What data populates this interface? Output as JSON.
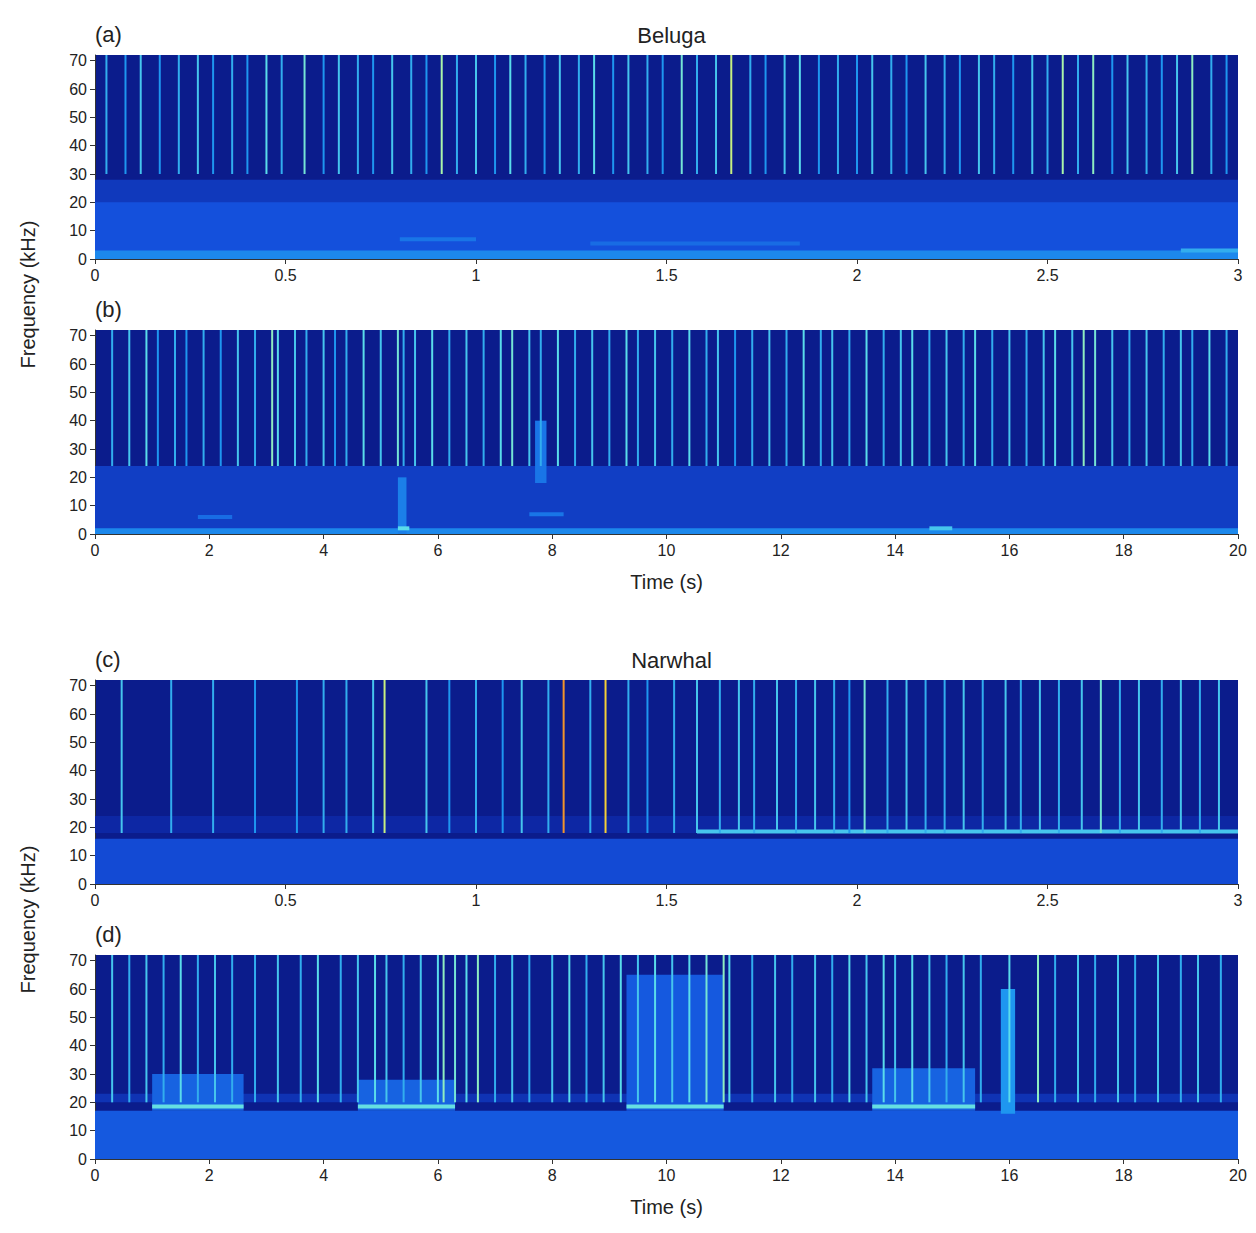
{
  "chart_data": [
    {
      "type": "spectrogram",
      "panel": "(a)",
      "title": "Beluga",
      "ylabel": "Frequency (kHz)",
      "xlim": [
        0,
        3
      ],
      "xticks": [
        0,
        0.5,
        1,
        1.5,
        2,
        2.5,
        3
      ],
      "ylim": [
        0,
        72
      ],
      "yticks": [
        0,
        10,
        20,
        30,
        40,
        50,
        60,
        70
      ],
      "grid": false,
      "noise_bands": [
        {
          "fmin": 0,
          "fmax": 28,
          "intensity": 0.22
        },
        {
          "fmin": 0,
          "fmax": 20,
          "intensity": 0.3
        },
        {
          "fmin": 0,
          "fmax": 3,
          "intensity": 0.42
        }
      ],
      "click_band": [
        30,
        72
      ],
      "clicks": [
        [
          0.03,
          0.5
        ],
        [
          0.08,
          0.45
        ],
        [
          0.12,
          0.55
        ],
        [
          0.17,
          0.45
        ],
        [
          0.22,
          0.5
        ],
        [
          0.27,
          0.55
        ],
        [
          0.31,
          0.45
        ],
        [
          0.36,
          0.5
        ],
        [
          0.4,
          0.45
        ],
        [
          0.45,
          0.6
        ],
        [
          0.49,
          0.5
        ],
        [
          0.55,
          0.65
        ],
        [
          0.6,
          0.45
        ],
        [
          0.64,
          0.55
        ],
        [
          0.69,
          0.5
        ],
        [
          0.73,
          0.45
        ],
        [
          0.78,
          0.55
        ],
        [
          0.83,
          0.5
        ],
        [
          0.87,
          0.45
        ],
        [
          0.91,
          0.75
        ],
        [
          0.95,
          0.5
        ],
        [
          1.0,
          0.55
        ],
        [
          1.05,
          0.45
        ],
        [
          1.09,
          0.6
        ],
        [
          1.13,
          0.5
        ],
        [
          1.18,
          0.45
        ],
        [
          1.22,
          0.55
        ],
        [
          1.27,
          0.5
        ],
        [
          1.31,
          0.6
        ],
        [
          1.36,
          0.45
        ],
        [
          1.4,
          0.55
        ],
        [
          1.45,
          0.5
        ],
        [
          1.49,
          0.45
        ],
        [
          1.54,
          0.65
        ],
        [
          1.58,
          0.5
        ],
        [
          1.63,
          0.55
        ],
        [
          1.67,
          0.8
        ],
        [
          1.72,
          0.5
        ],
        [
          1.76,
          0.45
        ],
        [
          1.81,
          0.55
        ],
        [
          1.85,
          0.6
        ],
        [
          1.9,
          0.45
        ],
        [
          1.95,
          0.5
        ],
        [
          2.0,
          0.45
        ],
        [
          2.04,
          0.55
        ],
        [
          2.09,
          0.5
        ],
        [
          2.13,
          0.45
        ],
        [
          2.18,
          0.55
        ],
        [
          2.23,
          0.5
        ],
        [
          2.27,
          0.45
        ],
        [
          2.32,
          0.55
        ],
        [
          2.36,
          0.5
        ],
        [
          2.41,
          0.45
        ],
        [
          2.46,
          0.55
        ],
        [
          2.5,
          0.5
        ],
        [
          2.54,
          0.75
        ],
        [
          2.58,
          0.5
        ],
        [
          2.62,
          0.7
        ],
        [
          2.67,
          0.45
        ],
        [
          2.71,
          0.55
        ],
        [
          2.76,
          0.5
        ],
        [
          2.8,
          0.45
        ],
        [
          2.84,
          0.55
        ],
        [
          2.88,
          0.7
        ],
        [
          2.93,
          0.5
        ],
        [
          2.97,
          0.45
        ]
      ],
      "tonals": [
        {
          "t0": 0.8,
          "t1": 1.0,
          "f": 7,
          "intensity": 0.38
        },
        {
          "t0": 1.3,
          "t1": 1.85,
          "f": 5.5,
          "intensity": 0.36
        },
        {
          "t0": 2.85,
          "t1": 3.0,
          "f": 3,
          "intensity": 0.5
        }
      ]
    },
    {
      "type": "spectrogram",
      "panel": "(b)",
      "xlabel": "Time (s)",
      "xlim": [
        0,
        20
      ],
      "xticks": [
        0,
        2,
        4,
        6,
        8,
        10,
        12,
        14,
        16,
        18,
        20
      ],
      "ylim": [
        0,
        72
      ],
      "yticks": [
        0,
        10,
        20,
        30,
        40,
        50,
        60,
        70
      ],
      "grid": false,
      "noise_bands": [
        {
          "fmin": 0,
          "fmax": 24,
          "intensity": 0.24
        },
        {
          "fmin": 0,
          "fmax": 2,
          "intensity": 0.42
        }
      ],
      "click_band": [
        24,
        72
      ],
      "clicks": [
        [
          0.3,
          0.5
        ],
        [
          0.6,
          0.55
        ],
        [
          0.9,
          0.6
        ],
        [
          1.1,
          0.45
        ],
        [
          1.4,
          0.5
        ],
        [
          1.6,
          0.45
        ],
        [
          1.9,
          0.5
        ],
        [
          2.2,
          0.45
        ],
        [
          2.5,
          0.55
        ],
        [
          2.8,
          0.5
        ],
        [
          3.1,
          0.7
        ],
        [
          3.2,
          0.6
        ],
        [
          3.5,
          0.55
        ],
        [
          3.7,
          0.5
        ],
        [
          4.0,
          0.55
        ],
        [
          4.2,
          0.45
        ],
        [
          4.4,
          0.5
        ],
        [
          4.7,
          0.6
        ],
        [
          5.0,
          0.55
        ],
        [
          5.3,
          0.65
        ],
        [
          5.4,
          0.5
        ],
        [
          5.6,
          0.55
        ],
        [
          5.9,
          0.6
        ],
        [
          6.2,
          0.5
        ],
        [
          6.5,
          0.55
        ],
        [
          6.8,
          0.5
        ],
        [
          7.1,
          0.6
        ],
        [
          7.3,
          0.65
        ],
        [
          7.6,
          0.55
        ],
        [
          7.8,
          0.5
        ],
        [
          8.1,
          0.6
        ],
        [
          8.4,
          0.5
        ],
        [
          8.7,
          0.55
        ],
        [
          9.0,
          0.5
        ],
        [
          9.3,
          0.6
        ],
        [
          9.5,
          0.5
        ],
        [
          9.8,
          0.55
        ],
        [
          10.1,
          0.5
        ],
        [
          10.4,
          0.6
        ],
        [
          10.7,
          0.5
        ],
        [
          10.9,
          0.55
        ],
        [
          11.2,
          0.45
        ],
        [
          11.5,
          0.5
        ],
        [
          11.8,
          0.55
        ],
        [
          12.1,
          0.5
        ],
        [
          12.4,
          0.6
        ],
        [
          12.7,
          0.5
        ],
        [
          12.9,
          0.55
        ],
        [
          13.2,
          0.5
        ],
        [
          13.5,
          0.6
        ],
        [
          13.8,
          0.5
        ],
        [
          14.1,
          0.55
        ],
        [
          14.3,
          0.6
        ],
        [
          14.6,
          0.5
        ],
        [
          14.9,
          0.55
        ],
        [
          15.2,
          0.5
        ],
        [
          15.4,
          0.6
        ],
        [
          15.7,
          0.5
        ],
        [
          16.0,
          0.55
        ],
        [
          16.3,
          0.5
        ],
        [
          16.6,
          0.55
        ],
        [
          16.8,
          0.6
        ],
        [
          17.1,
          0.55
        ],
        [
          17.3,
          0.7
        ],
        [
          17.5,
          0.65
        ],
        [
          17.8,
          0.55
        ],
        [
          18.1,
          0.5
        ],
        [
          18.4,
          0.55
        ],
        [
          18.7,
          0.5
        ],
        [
          19.0,
          0.55
        ],
        [
          19.2,
          0.5
        ],
        [
          19.5,
          0.6
        ],
        [
          19.8,
          0.5
        ]
      ],
      "tonals": [
        {
          "t0": 1.8,
          "t1": 2.4,
          "f": 6,
          "intensity": 0.36
        },
        {
          "t0": 7.6,
          "t1": 8.2,
          "f": 7,
          "intensity": 0.38
        },
        {
          "t0": 5.3,
          "t1": 5.5,
          "f": 2,
          "intensity": 0.6
        },
        {
          "t0": 14.6,
          "t1": 15.0,
          "f": 2,
          "intensity": 0.55
        }
      ],
      "bursts": [
        {
          "t0": 5.3,
          "t1": 5.45,
          "fmin": 0,
          "fmax": 20,
          "intensity": 0.4
        },
        {
          "t0": 7.7,
          "t1": 7.9,
          "fmin": 18,
          "fmax": 40,
          "intensity": 0.38
        }
      ]
    },
    {
      "type": "spectrogram",
      "panel": "(c)",
      "title": "Narwhal",
      "ylabel": "Frequency (kHz)",
      "xlim": [
        0,
        3
      ],
      "xticks": [
        0,
        0.5,
        1,
        1.5,
        2,
        2.5,
        3
      ],
      "ylim": [
        0,
        72
      ],
      "yticks": [
        0,
        10,
        20,
        30,
        40,
        50,
        60,
        70
      ],
      "grid": false,
      "noise_bands": [
        {
          "fmin": 0,
          "fmax": 16,
          "intensity": 0.28
        },
        {
          "fmin": 18,
          "fmax": 24,
          "intensity": 0.16
        }
      ],
      "click_band": [
        18,
        72
      ],
      "clicks": [
        [
          0.07,
          0.55
        ],
        [
          0.2,
          0.5
        ],
        [
          0.31,
          0.5
        ],
        [
          0.42,
          0.45
        ],
        [
          0.53,
          0.45
        ],
        [
          0.6,
          0.5
        ],
        [
          0.66,
          0.5
        ],
        [
          0.73,
          0.55
        ],
        [
          0.76,
          0.8
        ],
        [
          0.87,
          0.55
        ],
        [
          0.93,
          0.45
        ],
        [
          1.0,
          0.5
        ],
        [
          1.07,
          0.45
        ],
        [
          1.12,
          0.55
        ],
        [
          1.19,
          0.5
        ],
        [
          1.23,
          0.95
        ],
        [
          1.3,
          0.5
        ],
        [
          1.34,
          0.9
        ],
        [
          1.4,
          0.5
        ],
        [
          1.45,
          0.45
        ],
        [
          1.52,
          0.5
        ],
        [
          1.58,
          0.55
        ],
        [
          1.64,
          0.5
        ],
        [
          1.69,
          0.55
        ],
        [
          1.73,
          0.5
        ],
        [
          1.79,
          0.55
        ],
        [
          1.84,
          0.5
        ],
        [
          1.89,
          0.55
        ],
        [
          1.94,
          0.5
        ],
        [
          1.98,
          0.45
        ],
        [
          2.02,
          0.65
        ],
        [
          2.08,
          0.5
        ],
        [
          2.13,
          0.55
        ],
        [
          2.18,
          0.5
        ],
        [
          2.23,
          0.5
        ],
        [
          2.28,
          0.55
        ],
        [
          2.33,
          0.5
        ],
        [
          2.39,
          0.55
        ],
        [
          2.43,
          0.5
        ],
        [
          2.48,
          0.55
        ],
        [
          2.53,
          0.5
        ],
        [
          2.59,
          0.55
        ],
        [
          2.64,
          0.65
        ],
        [
          2.69,
          0.5
        ],
        [
          2.74,
          0.55
        ],
        [
          2.8,
          0.5
        ],
        [
          2.85,
          0.55
        ],
        [
          2.9,
          0.5
        ],
        [
          2.95,
          0.55
        ]
      ],
      "tonals": [
        {
          "t0": 1.58,
          "t1": 3.0,
          "f": 18.5,
          "intensity": 0.55
        }
      ]
    },
    {
      "type": "spectrogram",
      "panel": "(d)",
      "xlabel": "Time (s)",
      "xlim": [
        0,
        20
      ],
      "xticks": [
        0,
        2,
        4,
        6,
        8,
        10,
        12,
        14,
        16,
        18,
        20
      ],
      "ylim": [
        0,
        72
      ],
      "yticks": [
        0,
        10,
        20,
        30,
        40,
        50,
        60,
        70
      ],
      "grid": false,
      "noise_bands": [
        {
          "fmin": 0,
          "fmax": 17,
          "intensity": 0.32
        },
        {
          "fmin": 20,
          "fmax": 23,
          "intensity": 0.2
        }
      ],
      "click_band": [
        20,
        72
      ],
      "clicks": [
        [
          0.3,
          0.55
        ],
        [
          0.6,
          0.5
        ],
        [
          0.9,
          0.55
        ],
        [
          1.2,
          0.5
        ],
        [
          1.5,
          0.6
        ],
        [
          1.8,
          0.5
        ],
        [
          2.1,
          0.55
        ],
        [
          2.4,
          0.5
        ],
        [
          2.8,
          0.5
        ],
        [
          3.2,
          0.55
        ],
        [
          3.6,
          0.5
        ],
        [
          3.9,
          0.6
        ],
        [
          4.3,
          0.5
        ],
        [
          4.6,
          0.55
        ],
        [
          4.9,
          0.6
        ],
        [
          5.1,
          0.55
        ],
        [
          5.4,
          0.5
        ],
        [
          5.7,
          0.55
        ],
        [
          6.0,
          0.6
        ],
        [
          6.1,
          0.7
        ],
        [
          6.3,
          0.65
        ],
        [
          6.5,
          0.6
        ],
        [
          6.7,
          0.7
        ],
        [
          7.0,
          0.5
        ],
        [
          7.3,
          0.55
        ],
        [
          7.6,
          0.5
        ],
        [
          8.0,
          0.55
        ],
        [
          8.3,
          0.6
        ],
        [
          8.6,
          0.5
        ],
        [
          8.9,
          0.55
        ],
        [
          9.2,
          0.6
        ],
        [
          9.5,
          0.55
        ],
        [
          9.8,
          0.6
        ],
        [
          10.1,
          0.55
        ],
        [
          10.4,
          0.6
        ],
        [
          10.7,
          0.65
        ],
        [
          11.0,
          0.7
        ],
        [
          11.1,
          0.6
        ],
        [
          11.5,
          0.5
        ],
        [
          11.9,
          0.55
        ],
        [
          12.2,
          0.5
        ],
        [
          12.6,
          0.55
        ],
        [
          12.9,
          0.5
        ],
        [
          13.2,
          0.6
        ],
        [
          13.5,
          0.55
        ],
        [
          13.8,
          0.6
        ],
        [
          14.0,
          0.55
        ],
        [
          14.3,
          0.6
        ],
        [
          14.6,
          0.55
        ],
        [
          14.9,
          0.5
        ],
        [
          15.2,
          0.55
        ],
        [
          15.5,
          0.5
        ],
        [
          16.0,
          0.6
        ],
        [
          16.5,
          0.7
        ],
        [
          16.8,
          0.5
        ],
        [
          17.2,
          0.55
        ],
        [
          17.5,
          0.5
        ],
        [
          17.9,
          0.55
        ],
        [
          18.2,
          0.5
        ],
        [
          18.6,
          0.55
        ],
        [
          19.0,
          0.5
        ],
        [
          19.3,
          0.55
        ],
        [
          19.7,
          0.5
        ]
      ],
      "tonals": [
        {
          "t0": 1.0,
          "t1": 2.6,
          "f": 18.5,
          "intensity": 0.62
        },
        {
          "t0": 4.6,
          "t1": 6.3,
          "f": 18.5,
          "intensity": 0.62
        },
        {
          "t0": 9.3,
          "t1": 11.0,
          "f": 18.5,
          "intensity": 0.62
        },
        {
          "t0": 13.6,
          "t1": 15.4,
          "f": 18.5,
          "intensity": 0.62
        }
      ],
      "bursts": [
        {
          "t0": 1.0,
          "t1": 2.6,
          "fmin": 17,
          "fmax": 30,
          "intensity": 0.34
        },
        {
          "t0": 4.6,
          "t1": 6.3,
          "fmin": 17,
          "fmax": 28,
          "intensity": 0.34
        },
        {
          "t0": 9.3,
          "t1": 11.0,
          "fmin": 17,
          "fmax": 65,
          "intensity": 0.32
        },
        {
          "t0": 13.6,
          "t1": 15.4,
          "fmin": 17,
          "fmax": 32,
          "intensity": 0.34
        },
        {
          "t0": 15.85,
          "t1": 16.1,
          "fmin": 16,
          "fmax": 60,
          "intensity": 0.45
        }
      ]
    }
  ]
}
